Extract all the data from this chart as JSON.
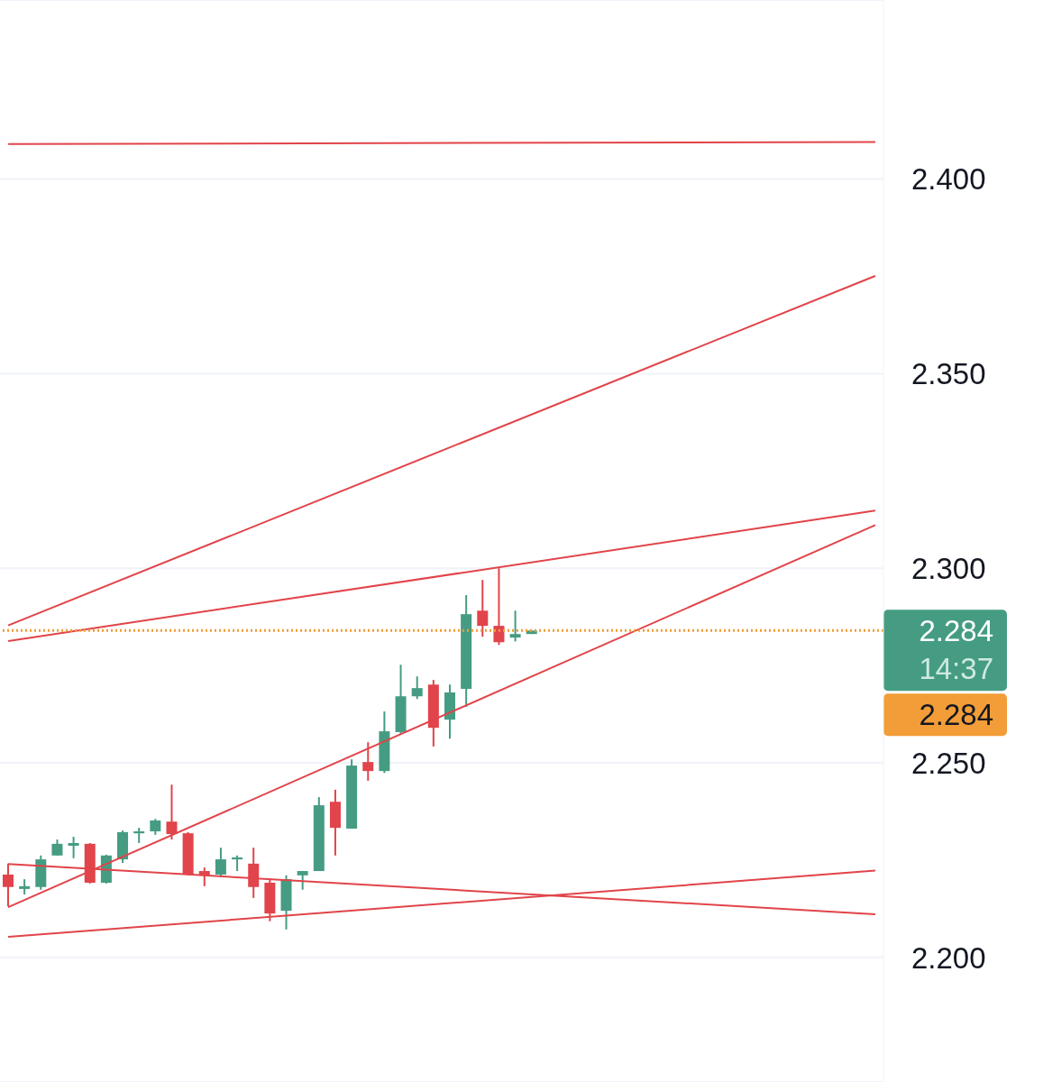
{
  "chart_data": {
    "type": "candlestick",
    "categories": [
      null,
      null,
      null,
      null,
      null,
      null,
      null,
      null,
      null,
      null,
      null,
      null,
      null,
      null,
      null,
      null,
      null,
      null,
      null,
      null,
      null,
      null,
      null,
      null,
      null,
      null,
      null,
      null,
      null,
      null,
      null,
      null,
      null,
      null,
      null,
      null,
      null,
      null,
      null,
      null,
      null,
      null,
      null,
      null,
      null,
      null,
      null,
      null,
      null,
      null,
      null,
      null,
      null,
      null
    ],
    "ohlc": [
      [
        2.2213,
        2.2241,
        2.2132,
        2.2181
      ],
      [
        2.2176,
        2.2201,
        2.2162,
        2.2183
      ],
      [
        2.2181,
        2.2262,
        2.2174,
        2.2252
      ],
      [
        2.2262,
        2.2303,
        2.2262,
        2.2292
      ],
      [
        2.2287,
        2.231,
        2.2255,
        2.2294
      ],
      [
        2.2292,
        2.2294,
        2.219,
        2.2192
      ],
      [
        2.2192,
        2.2264,
        2.219,
        2.2262
      ],
      [
        2.2252,
        2.2326,
        2.2243,
        2.2322
      ],
      [
        2.2319,
        2.2333,
        2.2294,
        2.2324
      ],
      [
        2.2324,
        2.2356,
        2.2315,
        2.2352
      ],
      [
        2.2349,
        2.2444,
        2.2303,
        2.2317
      ],
      [
        2.2319,
        2.2322,
        2.2211,
        2.2213
      ],
      [
        2.2222,
        2.2231,
        2.2183,
        2.2211
      ],
      [
        2.2213,
        2.2282,
        2.2206,
        2.2252
      ],
      [
        2.2252,
        2.2262,
        2.2222,
        2.2257
      ],
      [
        2.2241,
        2.2282,
        2.2153,
        2.2181
      ],
      [
        2.2192,
        2.2199,
        2.2093,
        2.2113
      ],
      [
        2.212,
        2.2211,
        2.2072,
        2.2201
      ],
      [
        2.2211,
        2.2222,
        2.2174,
        2.2222
      ],
      [
        2.2222,
        2.2412,
        2.2222,
        2.2391
      ],
      [
        2.24,
        2.2431,
        2.2262,
        2.2333
      ],
      [
        2.2331,
        2.2509,
        2.2331,
        2.2493
      ],
      [
        2.2502,
        2.2553,
        2.2454,
        2.2479
      ],
      [
        2.2479,
        2.2632,
        2.2474,
        2.2581
      ],
      [
        2.2579,
        2.2752,
        2.2574,
        2.2671
      ],
      [
        2.2671,
        2.2722,
        2.2664,
        2.2692
      ],
      [
        2.2701,
        2.2713,
        2.2542,
        2.259
      ],
      [
        2.2611,
        2.2701,
        2.2562,
        2.2681
      ],
      [
        2.269,
        2.2931,
        2.2644,
        2.2882
      ],
      [
        2.2891,
        2.297,
        2.2824,
        2.2852
      ],
      [
        2.2852,
        2.3,
        2.2803,
        2.281
      ],
      [
        2.2822,
        2.2891,
        2.2812,
        2.2831
      ],
      [
        2.2831,
        2.284,
        2.2831,
        2.284
      ],
      null,
      null,
      null,
      null,
      null,
      null,
      null,
      null,
      null,
      null,
      null,
      null,
      null,
      null,
      null,
      null,
      null,
      null,
      null,
      null,
      null
    ],
    "colors": [
      "#e1444a",
      "#459c83",
      "#459c83",
      "#459c83",
      "#459c83",
      "#e1444a",
      "#459c83",
      "#459c83",
      "#459c83",
      "#459c83",
      "#e1444a",
      "#e1444a",
      "#e1444a",
      "#459c83",
      "#459c83",
      "#e1444a",
      "#e1444a",
      "#459c83",
      "#459c83",
      "#459c83",
      "#e1444a",
      "#459c83",
      "#e1444a",
      "#459c83",
      "#459c83",
      "#459c83",
      "#e1444a",
      "#459c83",
      "#459c83",
      "#e1444a",
      "#e1444a",
      "#459c83",
      "#459c83",
      null,
      null,
      null,
      null,
      null,
      null,
      null,
      null,
      null,
      null,
      null,
      null,
      null,
      null,
      null,
      null,
      null,
      null,
      null,
      null,
      null
    ],
    "series": [
      {
        "type": "line",
        "color": "#e1444a",
        "values": [
          2.409,
          null,
          null,
          null,
          null,
          null,
          null,
          null,
          null,
          null,
          null,
          null,
          null,
          null,
          null,
          null,
          null,
          null,
          null,
          null,
          null,
          null,
          null,
          null,
          null,
          null,
          null,
          null,
          null,
          null,
          null,
          null,
          null,
          null,
          null,
          null,
          null,
          null,
          null,
          null,
          null,
          null,
          null,
          null,
          null,
          null,
          null,
          null,
          null,
          null,
          null,
          null,
          null,
          2.4095
        ]
      },
      {
        "type": "line",
        "color": "#e1444a",
        "values": [
          2.2853,
          null,
          null,
          null,
          null,
          null,
          null,
          null,
          null,
          null,
          null,
          null,
          null,
          null,
          null,
          null,
          null,
          null,
          null,
          null,
          null,
          null,
          null,
          null,
          null,
          null,
          null,
          null,
          null,
          null,
          null,
          null,
          null,
          null,
          null,
          null,
          null,
          null,
          null,
          null,
          null,
          null,
          null,
          null,
          null,
          null,
          null,
          null,
          null,
          null,
          null,
          null,
          null,
          2.3751
        ]
      },
      {
        "type": "line",
        "color": "#e1444a",
        "values": [
          2.2813,
          null,
          null,
          null,
          null,
          null,
          null,
          null,
          null,
          null,
          null,
          null,
          null,
          null,
          null,
          null,
          null,
          null,
          null,
          null,
          null,
          null,
          null,
          null,
          null,
          null,
          null,
          null,
          null,
          null,
          null,
          null,
          null,
          null,
          null,
          null,
          null,
          null,
          null,
          null,
          null,
          null,
          null,
          null,
          null,
          null,
          null,
          null,
          null,
          null,
          null,
          null,
          null,
          2.3148
        ]
      },
      {
        "type": "line",
        "color": "#e1444a",
        "values": [
          2.2129,
          null,
          null,
          null,
          null,
          null,
          null,
          null,
          null,
          null,
          null,
          null,
          null,
          null,
          null,
          null,
          null,
          null,
          null,
          null,
          null,
          null,
          null,
          null,
          null,
          null,
          null,
          null,
          null,
          null,
          null,
          null,
          null,
          null,
          null,
          null,
          null,
          null,
          null,
          null,
          null,
          null,
          null,
          null,
          null,
          null,
          null,
          null,
          null,
          null,
          null,
          null,
          null,
          2.3111
        ]
      },
      {
        "type": "line",
        "color": "#e1444a",
        "values": [
          2.224,
          null,
          null,
          null,
          null,
          null,
          null,
          null,
          null,
          null,
          null,
          null,
          null,
          null,
          null,
          null,
          null,
          null,
          null,
          null,
          null,
          null,
          null,
          null,
          null,
          null,
          null,
          null,
          null,
          null,
          null,
          null,
          null,
          null,
          null,
          null,
          null,
          null,
          null,
          null,
          null,
          null,
          null,
          null,
          null,
          null,
          null,
          null,
          null,
          null,
          null,
          null,
          null,
          2.2111
        ]
      },
      {
        "type": "line",
        "color": "#e1444a",
        "values": [
          2.2053,
          null,
          null,
          null,
          null,
          null,
          null,
          null,
          null,
          null,
          null,
          null,
          null,
          null,
          null,
          null,
          null,
          null,
          null,
          null,
          null,
          null,
          null,
          null,
          null,
          null,
          null,
          null,
          null,
          null,
          null,
          null,
          null,
          null,
          null,
          null,
          null,
          null,
          null,
          null,
          null,
          null,
          null,
          null,
          null,
          null,
          null,
          null,
          null,
          null,
          null,
          null,
          null,
          2.2223
        ]
      }
    ],
    "ylim": [
      2.168,
      2.446
    ],
    "yticks": [
      {
        "value": 2.2,
        "label": "2.200"
      },
      {
        "value": 2.25,
        "label": "2.250"
      },
      {
        "value": 2.3,
        "label": "2.300"
      },
      {
        "value": 2.35,
        "label": "2.350"
      },
      {
        "value": 2.4,
        "label": "2.400"
      }
    ],
    "grid": "y",
    "tick_labels": "y",
    "ref_lines": [
      {
        "axis": "y",
        "value": 2.284,
        "label": "2.284",
        "color": "#f29d38",
        "line_style": "dotted"
      }
    ],
    "annotations": [
      "2.284",
      "14:37"
    ]
  }
}
